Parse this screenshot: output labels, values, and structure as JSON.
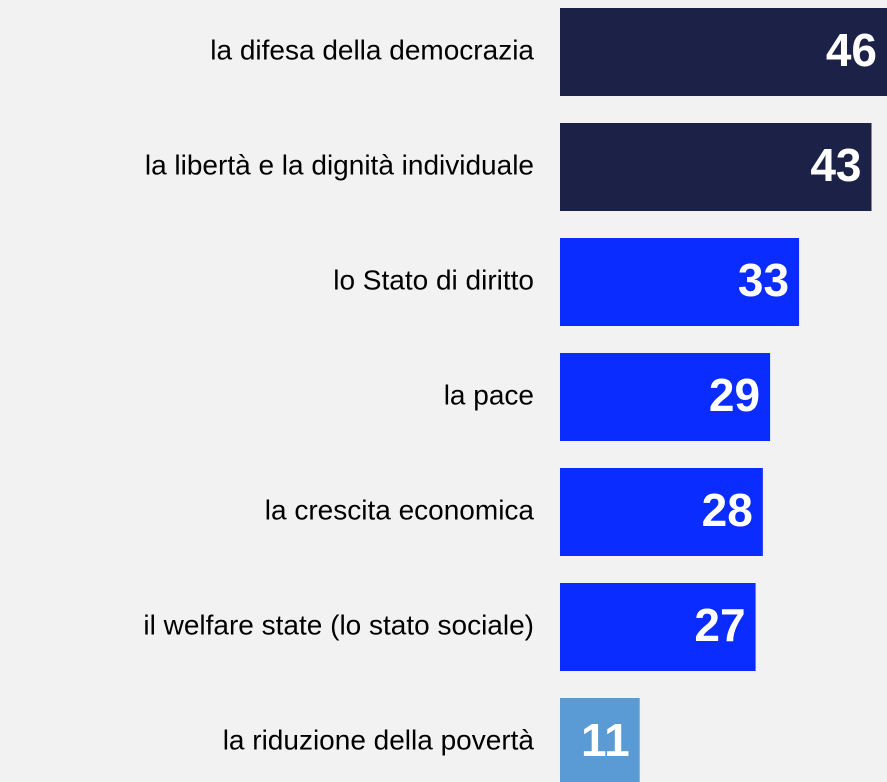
{
  "chart_data": {
    "type": "barh",
    "categories": [
      "la difesa della democrazia",
      "la libertà e la dignità individuale",
      "lo Stato di diritto",
      "la pace",
      "la crescita economica",
      "il welfare state (lo stato sociale)",
      "la riduzione della povertà"
    ],
    "values": [
      46,
      43,
      33,
      29,
      28,
      27,
      11
    ],
    "colors": [
      "#1c2147",
      "#1c2147",
      "#0a2cff",
      "#0a2cff",
      "#0a2cff",
      "#0a2cff",
      "#5b9bd5"
    ],
    "xlim": [
      0,
      45
    ]
  }
}
